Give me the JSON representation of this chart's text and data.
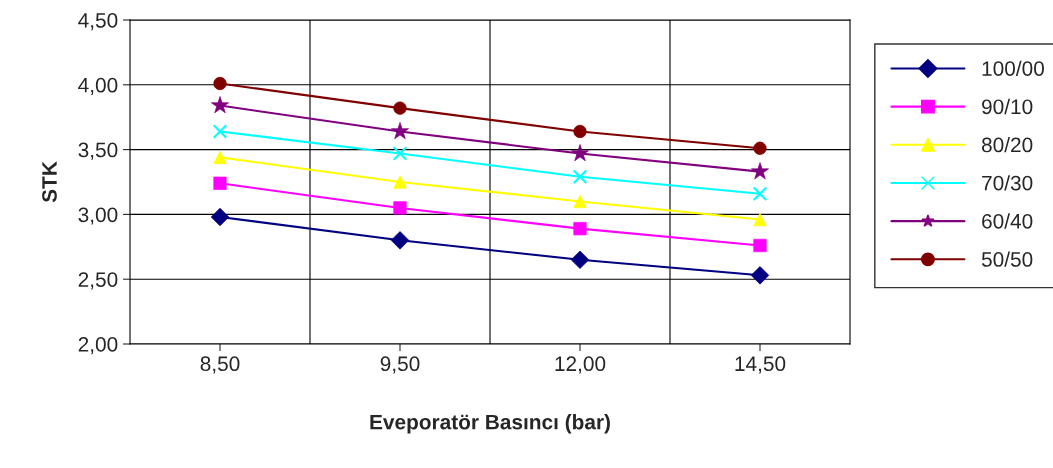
{
  "chart_data": {
    "type": "line",
    "xlabel": "Eveporatör Basıncı (bar)",
    "ylabel": "STK",
    "categories": [
      "8,50",
      "9,50",
      "12,00",
      "14,50"
    ],
    "ylim": [
      2.0,
      4.5
    ],
    "yticks": [
      {
        "value": 2.0,
        "label": "2,00"
      },
      {
        "value": 2.5,
        "label": "2,50"
      },
      {
        "value": 3.0,
        "label": "3,00"
      },
      {
        "value": 3.5,
        "label": "3,50"
      },
      {
        "value": 4.0,
        "label": "4,00"
      },
      {
        "value": 4.5,
        "label": "4,50"
      }
    ],
    "grid": true,
    "legend": "right",
    "series": [
      {
        "name": "100/00",
        "color": "#000080",
        "marker": "diamond",
        "values": [
          2.98,
          2.8,
          2.65,
          2.53
        ]
      },
      {
        "name": "90/10",
        "color": "#ff00ff",
        "marker": "square",
        "values": [
          3.24,
          3.05,
          2.89,
          2.76
        ]
      },
      {
        "name": "80/20",
        "color": "#ffff00",
        "marker": "triangle",
        "values": [
          3.44,
          3.25,
          3.1,
          2.96
        ]
      },
      {
        "name": "70/30",
        "color": "#00ffff",
        "marker": "cross",
        "values": [
          3.64,
          3.47,
          3.29,
          3.16
        ]
      },
      {
        "name": "60/40",
        "color": "#800080",
        "marker": "star",
        "values": [
          3.84,
          3.64,
          3.47,
          3.33
        ]
      },
      {
        "name": "50/50",
        "color": "#800000",
        "marker": "circle",
        "values": [
          4.01,
          3.82,
          3.64,
          3.51
        ]
      }
    ]
  }
}
